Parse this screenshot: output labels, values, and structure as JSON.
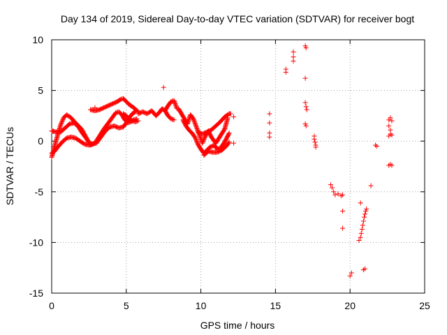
{
  "chart_data": {
    "type": "scatter",
    "title": "Day 134 of 2019, Sidereal Day-to-day VTEC variation (SDTVAR) for receiver bogt",
    "xlabel": "GPS time / hours",
    "ylabel": "SDTVAR / TECUs",
    "xlim": [
      0,
      25
    ],
    "ylim": [
      -15,
      10
    ],
    "xticks": [
      "0",
      "5",
      "10",
      "15",
      "20",
      "25"
    ],
    "yticks": [
      "10",
      "5",
      "0",
      "-5",
      "-10",
      "-15"
    ],
    "grid": true,
    "marker": "+",
    "series_color": "#ff0000",
    "tracks": [
      {
        "x": [
          0.0,
          0.2,
          0.4,
          0.6,
          0.8,
          1.0,
          1.3,
          1.6,
          2.0,
          2.3,
          2.6,
          2.9,
          3.2,
          3.5,
          3.8,
          4.1,
          4.3,
          4.5,
          4.7,
          4.9,
          5.1,
          5.3,
          5.5,
          5.7
        ],
        "y": [
          -1.6,
          -0.5,
          0.6,
          1.6,
          2.3,
          2.6,
          2.3,
          1.8,
          1.2,
          0.4,
          -0.4,
          -0.2,
          0.5,
          1.2,
          1.8,
          2.4,
          2.8,
          2.9,
          2.6,
          2.1,
          1.8,
          1.9,
          2.1,
          2.2
        ]
      },
      {
        "x": [
          0.0,
          0.3,
          0.6,
          0.9,
          1.2,
          1.5,
          1.8,
          2.0,
          2.3,
          2.6,
          3.0,
          3.3,
          3.6,
          3.9,
          4.2,
          4.5,
          4.8,
          5.0,
          5.2,
          5.4,
          5.6
        ],
        "y": [
          1.0,
          0.9,
          0.9,
          1.3,
          1.7,
          1.8,
          1.4,
          0.9,
          0.3,
          -0.3,
          -0.2,
          0.4,
          1.0,
          1.4,
          1.5,
          1.3,
          1.4,
          1.8,
          2.3,
          2.7,
          2.9
        ]
      },
      {
        "x": [
          0.0,
          0.2,
          0.4,
          0.7,
          1.0,
          1.3,
          1.6,
          1.9,
          2.2,
          2.5,
          2.7
        ],
        "y": [
          -1.2,
          -1.0,
          -0.6,
          -0.1,
          0.3,
          0.4,
          0.3,
          0.0,
          -0.3,
          -0.4,
          -0.3
        ]
      },
      {
        "x": [
          2.6,
          2.9,
          3.2,
          3.5,
          3.8,
          4.1,
          4.4,
          4.6,
          4.8,
          5.0,
          5.2,
          5.5,
          5.8
        ],
        "y": [
          3.1,
          3.0,
          3.1,
          3.3,
          3.5,
          3.7,
          3.9,
          4.1,
          4.2,
          3.9,
          3.6,
          3.3,
          2.9
        ]
      },
      {
        "x": [
          5.8,
          6.1,
          6.4,
          6.7,
          7.0,
          7.2,
          7.4,
          7.6,
          7.8,
          8.0,
          8.2
        ],
        "y": [
          2.7,
          2.9,
          2.7,
          3.0,
          2.5,
          2.8,
          3.2,
          3.0,
          2.5,
          2.2,
          2.1
        ]
      },
      {
        "x": [
          7.6,
          7.8,
          8.0,
          8.2,
          8.4
        ],
        "y": [
          3.0,
          3.5,
          3.9,
          4.0,
          3.2
        ]
      },
      {
        "x": [
          8.5,
          8.7,
          8.9,
          9.1,
          9.3,
          9.5,
          9.7,
          9.9,
          10.1,
          10.3,
          10.5,
          10.7,
          11.0,
          11.3,
          11.6,
          11.8
        ],
        "y": [
          3.2,
          2.7,
          2.2,
          1.7,
          2.6,
          2.2,
          1.4,
          0.6,
          -0.2,
          0.5,
          1.0,
          0.4,
          -0.2,
          0.5,
          1.2,
          2.3
        ]
      },
      {
        "x": [
          8.8,
          9.0,
          9.2,
          9.4,
          9.6,
          9.8,
          10.0,
          10.2,
          10.4,
          10.6,
          10.9,
          11.1,
          11.3,
          11.5,
          11.7,
          11.9
        ],
        "y": [
          2.1,
          1.5,
          1.1,
          0.8,
          0.4,
          -0.3,
          -0.8,
          -1.2,
          -0.9,
          -0.6,
          -0.4,
          -0.8,
          -0.7,
          -0.3,
          0.2,
          0.8
        ]
      },
      {
        "x": [
          9.8,
          10.1,
          10.4,
          10.7,
          11.0,
          11.3,
          11.6,
          11.9,
          12.0
        ],
        "y": [
          0.9,
          0.7,
          0.9,
          1.1,
          1.5,
          1.9,
          2.4,
          2.7,
          2.7
        ]
      },
      {
        "x": [
          10.2,
          10.5,
          10.8,
          11.1,
          11.4,
          11.7,
          11.9
        ],
        "y": [
          -1.4,
          -1.0,
          -1.1,
          -1.1,
          -0.9,
          -0.5,
          -0.1
        ]
      },
      {
        "x": [
          4.8,
          5.0,
          5.2,
          5.4,
          5.6,
          5.8
        ],
        "y": [
          2.7,
          2.5,
          2.2,
          2.0,
          1.9,
          2.0
        ]
      }
    ],
    "points": [
      {
        "x": 0.1,
        "y": 1.0
      },
      {
        "x": 2.9,
        "y": 3.3
      },
      {
        "x": 7.5,
        "y": 5.3
      },
      {
        "x": 12.2,
        "y": 2.4
      },
      {
        "x": 12.2,
        "y": -0.2
      },
      {
        "x": 14.6,
        "y": 2.7
      },
      {
        "x": 14.6,
        "y": 1.8
      },
      {
        "x": 14.6,
        "y": 0.8
      },
      {
        "x": 14.6,
        "y": 0.4
      },
      {
        "x": 15.7,
        "y": 7.1
      },
      {
        "x": 15.7,
        "y": 6.8
      },
      {
        "x": 16.2,
        "y": 8.8
      },
      {
        "x": 16.2,
        "y": 8.3
      },
      {
        "x": 16.2,
        "y": 7.9
      },
      {
        "x": 17.0,
        "y": 9.4
      },
      {
        "x": 17.05,
        "y": 9.2
      },
      {
        "x": 17.0,
        "y": 6.2
      },
      {
        "x": 17.0,
        "y": 3.8
      },
      {
        "x": 17.05,
        "y": 3.4
      },
      {
        "x": 17.1,
        "y": 3.1
      },
      {
        "x": 17.0,
        "y": 1.7
      },
      {
        "x": 17.05,
        "y": 1.5
      },
      {
        "x": 17.6,
        "y": 0.5
      },
      {
        "x": 17.6,
        "y": 0.2
      },
      {
        "x": 17.65,
        "y": -0.1
      },
      {
        "x": 17.7,
        "y": -0.4
      },
      {
        "x": 17.7,
        "y": -0.6
      },
      {
        "x": 18.7,
        "y": -4.3
      },
      {
        "x": 18.8,
        "y": -4.6
      },
      {
        "x": 18.9,
        "y": -5.0
      },
      {
        "x": 19.0,
        "y": -5.3
      },
      {
        "x": 19.2,
        "y": -5.2
      },
      {
        "x": 19.4,
        "y": -5.4
      },
      {
        "x": 19.5,
        "y": -5.3
      },
      {
        "x": 19.5,
        "y": -6.9
      },
      {
        "x": 19.5,
        "y": -8.6
      },
      {
        "x": 20.1,
        "y": -13.0
      },
      {
        "x": 20.0,
        "y": -13.3
      },
      {
        "x": 20.6,
        "y": -9.8
      },
      {
        "x": 20.7,
        "y": -9.5
      },
      {
        "x": 20.75,
        "y": -9.1
      },
      {
        "x": 20.8,
        "y": -8.7
      },
      {
        "x": 20.85,
        "y": -8.3
      },
      {
        "x": 20.9,
        "y": -7.9
      },
      {
        "x": 20.95,
        "y": -7.5
      },
      {
        "x": 21.0,
        "y": -7.2
      },
      {
        "x": 21.05,
        "y": -6.9
      },
      {
        "x": 21.1,
        "y": -6.7
      },
      {
        "x": 20.7,
        "y": -6.1
      },
      {
        "x": 20.9,
        "y": -12.7
      },
      {
        "x": 21.0,
        "y": -12.6
      },
      {
        "x": 21.4,
        "y": -4.4
      },
      {
        "x": 21.7,
        "y": -0.4
      },
      {
        "x": 21.8,
        "y": -0.5
      },
      {
        "x": 22.6,
        "y": 2.1
      },
      {
        "x": 22.7,
        "y": 2.3
      },
      {
        "x": 22.8,
        "y": 2.0
      },
      {
        "x": 22.6,
        "y": 1.5
      },
      {
        "x": 22.7,
        "y": 1.1
      },
      {
        "x": 22.6,
        "y": 0.5
      },
      {
        "x": 22.7,
        "y": 0.7
      },
      {
        "x": 22.8,
        "y": 0.6
      },
      {
        "x": 22.6,
        "y": -2.4
      },
      {
        "x": 22.7,
        "y": -2.3
      },
      {
        "x": 22.8,
        "y": -2.4
      }
    ]
  }
}
